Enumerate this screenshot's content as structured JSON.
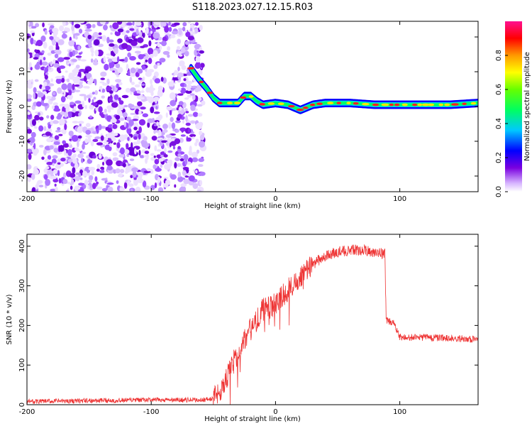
{
  "title": "S118.2023.027.12.15.R03",
  "chart_data": [
    {
      "type": "heatmap",
      "title": "S118.2023.027.12.15.R03",
      "xlabel": "Height of straight line (km)",
      "ylabel": "Frequency (Hz)",
      "xlim": [
        -200,
        163
      ],
      "ylim": [
        -24.5,
        24.5
      ],
      "x_ticks": [
        "-200",
        "-100",
        "0",
        "100"
      ],
      "y_ticks": [
        "-20",
        "-10",
        "0",
        "10",
        "20"
      ],
      "colorbar": {
        "label": "Normalized spectral amplitude",
        "ticks": [
          "0.0",
          "0.2",
          "0.4",
          "0.6",
          "0.8"
        ],
        "range": [
          0,
          1
        ],
        "colormap": "rainbow (white → violet → blue → cyan → green → yellow → red → magenta)"
      },
      "noise_region_x": [
        -200,
        -58
      ],
      "tone_track": {
        "x": [
          -68,
          -62,
          -55,
          -50,
          -45,
          -40,
          -30,
          -25,
          -20,
          -15,
          -10,
          0,
          10,
          20,
          30,
          40,
          60,
          80,
          100,
          120,
          140,
          163
        ],
        "y": [
          11,
          8,
          5,
          2.5,
          1,
          1,
          1,
          3,
          3,
          1.5,
          0.5,
          1,
          0.5,
          -1,
          0.5,
          1,
          1,
          0.5,
          0.5,
          0.5,
          0.5,
          1
        ]
      },
      "grid": false
    },
    {
      "type": "line",
      "xlabel": "Height of straight line (km)",
      "ylabel": "SNR (10 * v/v)",
      "xlim": [
        -200,
        163
      ],
      "ylim": [
        0,
        430
      ],
      "x_ticks": [
        "-200",
        "-100",
        "0",
        "100"
      ],
      "y_ticks": [
        "0",
        "100",
        "200",
        "300",
        "400"
      ],
      "series_color": "#ee3333",
      "series": [
        {
          "x": [
            -200,
            -150,
            -100,
            -60,
            -50,
            -45,
            -40,
            -35,
            -30,
            -25,
            -20,
            -15,
            -10,
            -5,
            0,
            10,
            20,
            30,
            40,
            50,
            60,
            70,
            80,
            88,
            89,
            95,
            100,
            120,
            140,
            163
          ],
          "y": [
            8,
            10,
            12,
            12,
            15,
            35,
            60,
            100,
            130,
            165,
            190,
            215,
            240,
            245,
            255,
            290,
            325,
            355,
            375,
            385,
            390,
            390,
            385,
            380,
            215,
            205,
            170,
            170,
            168,
            165
          ]
        }
      ],
      "grid": false
    }
  ]
}
